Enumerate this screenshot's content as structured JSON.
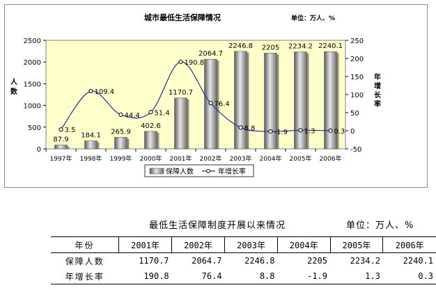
{
  "chart_data": {
    "type": "bar+line",
    "title": "城市最低生活保障情况",
    "unit": "单位：万人、%",
    "categories": [
      "1997年",
      "1998年",
      "1999年",
      "2000年",
      "2001年",
      "2002年",
      "2003年",
      "2004年",
      "2005年",
      "2006年"
    ],
    "bar_labels": [
      "87.9",
      "184.1",
      "265.9",
      "402.6",
      "1170.7",
      "2064.7",
      "2246.8",
      "2205",
      "2234.2",
      "2240.1"
    ],
    "line_labels": [
      "3.5",
      "109.4",
      "44.4",
      "51.4",
      "190.8",
      "76.4",
      "8.8",
      "-1.9",
      "1.3",
      "0.3"
    ],
    "series": [
      {
        "name": "保障人数",
        "axis": "left",
        "type": "bar",
        "color": "#a6a6a6",
        "values": [
          87.9,
          184.1,
          265.9,
          402.6,
          1170.7,
          2064.7,
          2246.8,
          2205,
          2234.2,
          2240.1
        ]
      },
      {
        "name": "年增长率",
        "axis": "right",
        "type": "line",
        "color": "#1f2f8f",
        "values": [
          3.5,
          109.4,
          44.4,
          51.4,
          190.8,
          76.4,
          8.8,
          -1.9,
          1.3,
          0.3
        ]
      }
    ],
    "ylabel_left": "人数",
    "ylabel_right": "年增长率",
    "ylim_left": [
      0,
      2500
    ],
    "yticks_left": [
      0,
      500,
      1000,
      1500,
      2000,
      2500
    ],
    "ylim_right": [
      -50,
      250
    ],
    "yticks_right": [
      -50,
      0,
      50,
      100,
      150,
      200,
      250
    ],
    "plot_background": "#ffffcc",
    "grid": false,
    "legend_position": "bottom"
  },
  "table": {
    "title": "最低生活保障制度开展以来情况",
    "unit": "单位：万人、%",
    "header_label": "年份",
    "years": [
      "2001年",
      "2002年",
      "2003年",
      "2004年",
      "2005年",
      "2006年"
    ],
    "rows": [
      {
        "label": "保障人数",
        "values": [
          "1170.7",
          "2064.7",
          "2246.8",
          "2205",
          "2234.2",
          "2240.1"
        ]
      },
      {
        "label": "年增长率",
        "values": [
          "190.8",
          "76.4",
          "8.8",
          "-1.9",
          "1.3",
          "0.3"
        ]
      }
    ]
  }
}
